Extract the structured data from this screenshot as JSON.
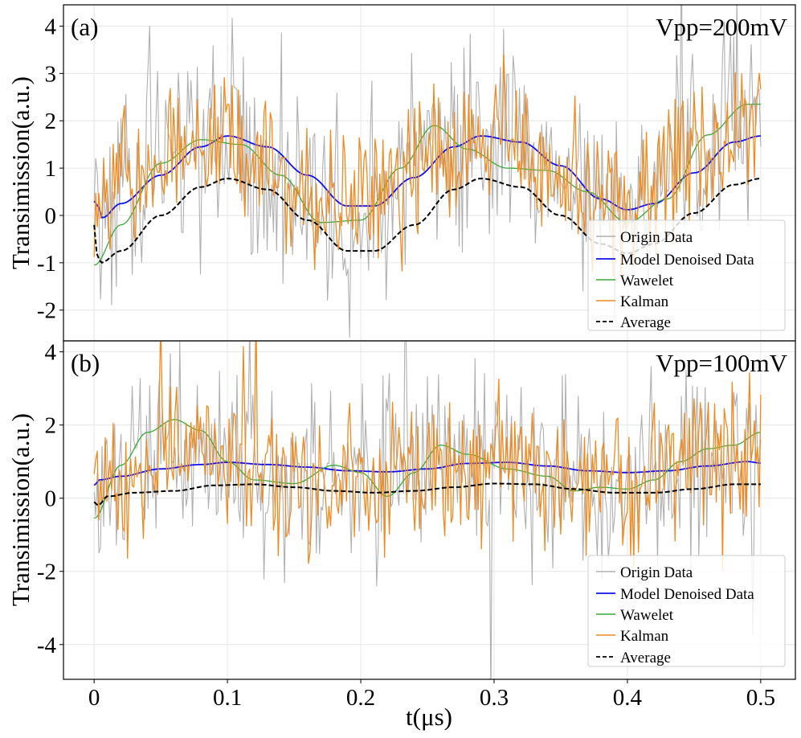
{
  "chart_data": [
    {
      "type": "line",
      "panel_label": "(a)",
      "annotation": "Vpp=200mV",
      "ylabel": "Transimission(a.u.)",
      "xlabel": "",
      "xlim": [
        -0.023,
        0.526
      ],
      "ylim": [
        -2.65,
        4.45
      ],
      "xticks": [
        0,
        0.1,
        0.2,
        0.3,
        0.4,
        0.5
      ],
      "xtick_labels": [
        "0",
        "0.1",
        "0.2",
        "0.3",
        "0.4",
        "0.5"
      ],
      "yticks": [
        -2,
        -1,
        0,
        1,
        2,
        3,
        4
      ],
      "ytick_labels": [
        "-2",
        "-1",
        "0",
        "1",
        "2",
        "3",
        "4"
      ],
      "grid": true,
      "legend_position": "lower-right",
      "noise_seed": 11,
      "series": [
        {
          "name": "Origin Data",
          "color": "#b0b0b0",
          "style": "solid",
          "kind": "noisy",
          "noise_amplitude": 1.05,
          "x": [
            0,
            0.05,
            0.1,
            0.15,
            0.2,
            0.25,
            0.3,
            0.35,
            0.4,
            0.45,
            0.5
          ],
          "y": [
            0.3,
            1.4,
            1.65,
            0.4,
            0.1,
            1.3,
            1.7,
            0.8,
            0.2,
            1.5,
            2.3
          ]
        },
        {
          "name": "Model Denoised Data",
          "color": "#1111ee",
          "style": "solid",
          "x": [
            0,
            0.003,
            0.006,
            0.02,
            0.05,
            0.08,
            0.1,
            0.13,
            0.16,
            0.19,
            0.21,
            0.24,
            0.27,
            0.29,
            0.32,
            0.35,
            0.38,
            0.4,
            0.42,
            0.45,
            0.48,
            0.5
          ],
          "y": [
            0.3,
            0.2,
            -0.05,
            0.25,
            0.85,
            1.45,
            1.68,
            1.45,
            0.85,
            0.2,
            0.2,
            0.8,
            1.45,
            1.68,
            1.55,
            1.05,
            0.35,
            0.12,
            0.25,
            0.9,
            1.55,
            1.68
          ]
        },
        {
          "name": "Wawelet",
          "color": "#3aaa3a",
          "style": "solid",
          "x": [
            0,
            0.02,
            0.05,
            0.08,
            0.11,
            0.14,
            0.17,
            0.2,
            0.23,
            0.255,
            0.28,
            0.31,
            0.34,
            0.37,
            0.4,
            0.43,
            0.46,
            0.49,
            0.5
          ],
          "y": [
            -1.05,
            -0.2,
            1.1,
            1.6,
            1.5,
            0.85,
            -0.15,
            -0.1,
            1.0,
            1.9,
            1.4,
            1.0,
            0.95,
            0.5,
            -0.15,
            0.35,
            1.7,
            2.35,
            2.35
          ]
        },
        {
          "name": "Kalman",
          "color": "#f08a20",
          "style": "solid",
          "kind": "noisy",
          "noise_amplitude": 0.75,
          "x": [
            0,
            0.05,
            0.1,
            0.15,
            0.2,
            0.25,
            0.3,
            0.35,
            0.4,
            0.45,
            0.5
          ],
          "y": [
            0.2,
            1.35,
            1.6,
            0.45,
            0.15,
            1.3,
            1.65,
            0.75,
            0.25,
            1.4,
            2.2
          ]
        },
        {
          "name": "Average",
          "color": "#000000",
          "style": "dashed",
          "x": [
            0,
            0.002,
            0.005,
            0.02,
            0.05,
            0.08,
            0.1,
            0.13,
            0.16,
            0.19,
            0.21,
            0.24,
            0.27,
            0.29,
            0.32,
            0.35,
            0.38,
            0.4,
            0.42,
            0.45,
            0.48,
            0.5
          ],
          "y": [
            -0.2,
            -0.8,
            -1.0,
            -0.75,
            0.0,
            0.6,
            0.78,
            0.55,
            -0.1,
            -0.75,
            -0.75,
            -0.2,
            0.55,
            0.78,
            0.6,
            0.0,
            -0.6,
            -0.8,
            -0.6,
            0.05,
            0.65,
            0.78
          ]
        }
      ]
    },
    {
      "type": "line",
      "panel_label": "(b)",
      "annotation": "Vpp=100mV",
      "ylabel": "Transimission(a.u.)",
      "xlabel": "t(μs)",
      "xlim": [
        -0.023,
        0.526
      ],
      "ylim": [
        -4.95,
        4.3
      ],
      "xticks": [
        0,
        0.1,
        0.2,
        0.3,
        0.4,
        0.5
      ],
      "xtick_labels": [
        "0",
        "0.1",
        "0.2",
        "0.3",
        "0.4",
        "0.5"
      ],
      "yticks": [
        -4,
        -2,
        0,
        2,
        4
      ],
      "ytick_labels": [
        "-4",
        "-2",
        "0",
        "2",
        "4"
      ],
      "grid": true,
      "legend_position": "lower-right",
      "noise_seed": 23,
      "series": [
        {
          "name": "Origin Data",
          "color": "#b0b0b0",
          "style": "solid",
          "kind": "noisy",
          "noise_amplitude": 1.25,
          "x": [
            0,
            0.05,
            0.1,
            0.15,
            0.2,
            0.25,
            0.3,
            0.35,
            0.4,
            0.45,
            0.5
          ],
          "y": [
            0.3,
            1.3,
            1.2,
            0.5,
            0.5,
            1.0,
            0.9,
            0.5,
            0.3,
            1.2,
            1.5
          ]
        },
        {
          "name": "Model Denoised Data",
          "color": "#1111ee",
          "style": "solid",
          "x": [
            0,
            0.004,
            0.02,
            0.05,
            0.08,
            0.1,
            0.13,
            0.16,
            0.19,
            0.22,
            0.25,
            0.28,
            0.31,
            0.34,
            0.37,
            0.4,
            0.43,
            0.46,
            0.49,
            0.5
          ],
          "y": [
            0.35,
            0.5,
            0.6,
            0.8,
            0.92,
            0.98,
            0.92,
            0.85,
            0.75,
            0.72,
            0.8,
            0.95,
            0.98,
            0.88,
            0.75,
            0.7,
            0.75,
            0.88,
            1.0,
            0.96
          ]
        },
        {
          "name": "Wawelet",
          "color": "#3aaa3a",
          "style": "solid",
          "x": [
            0,
            0.02,
            0.04,
            0.06,
            0.08,
            0.1,
            0.12,
            0.15,
            0.18,
            0.2,
            0.22,
            0.24,
            0.26,
            0.28,
            0.31,
            0.34,
            0.36,
            0.38,
            0.4,
            0.42,
            0.44,
            0.46,
            0.48,
            0.5
          ],
          "y": [
            -0.55,
            0.9,
            1.8,
            2.15,
            1.85,
            1.0,
            0.5,
            0.4,
            0.9,
            0.7,
            0.05,
            0.7,
            1.45,
            1.2,
            0.8,
            0.6,
            0.2,
            0.3,
            0.25,
            0.5,
            1.0,
            1.35,
            1.45,
            1.8
          ]
        },
        {
          "name": "Kalman",
          "color": "#f08a20",
          "style": "solid",
          "kind": "noisy",
          "noise_amplitude": 0.95,
          "x": [
            0,
            0.05,
            0.1,
            0.15,
            0.2,
            0.25,
            0.3,
            0.35,
            0.4,
            0.45,
            0.5
          ],
          "y": [
            0.2,
            1.4,
            1.3,
            0.5,
            0.5,
            1.0,
            0.9,
            0.5,
            0.3,
            1.2,
            1.4
          ]
        },
        {
          "name": "Average",
          "color": "#000000",
          "style": "dashed",
          "x": [
            0,
            0.003,
            0.01,
            0.03,
            0.06,
            0.09,
            0.12,
            0.15,
            0.18,
            0.21,
            0.24,
            0.27,
            0.3,
            0.33,
            0.36,
            0.39,
            0.42,
            0.45,
            0.48,
            0.5
          ],
          "y": [
            -0.1,
            -0.2,
            0.05,
            0.15,
            0.2,
            0.35,
            0.38,
            0.3,
            0.2,
            0.15,
            0.2,
            0.3,
            0.4,
            0.38,
            0.25,
            0.15,
            0.15,
            0.25,
            0.38,
            0.38
          ]
        }
      ]
    }
  ]
}
